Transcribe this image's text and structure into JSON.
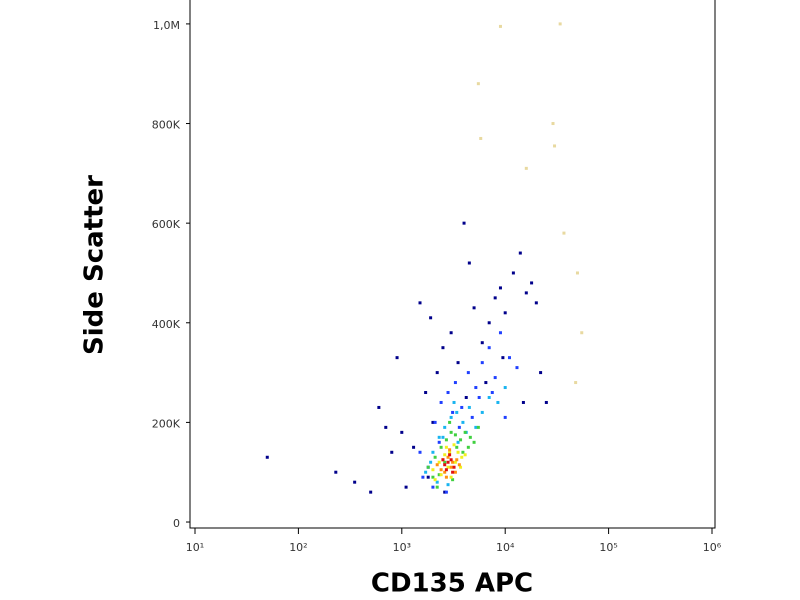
{
  "chart_data": {
    "type": "scatter",
    "x_label": "CD135 APC",
    "y_label": "Side Scatter",
    "x_scale": "log",
    "xlim": [
      10,
      1000000
    ],
    "ylim": [
      -12000,
      1048000
    ],
    "xticks": [
      {
        "value": 10,
        "label": "10¹"
      },
      {
        "value": 100,
        "label": "10²"
      },
      {
        "value": 1000,
        "label": "10³"
      },
      {
        "value": 10000,
        "label": "10⁴"
      },
      {
        "value": 100000,
        "label": "10⁵"
      },
      {
        "value": 1000000,
        "label": "10⁶"
      }
    ],
    "yticks": [
      0,
      {
        "value": 200000,
        "label": "200K"
      },
      {
        "value": 400000,
        "label": "400K"
      },
      {
        "value": 600000,
        "label": "600K"
      },
      {
        "value": 800000,
        "label": "800K"
      },
      {
        "value": 1000000,
        "label": "1,0M"
      }
    ],
    "layers": [
      {
        "color": "#00008b",
        "x": [
          50,
          230,
          350,
          500,
          600,
          700,
          800,
          900,
          1100,
          1300,
          1500,
          1700,
          2000,
          2200,
          2500,
          3000,
          3500,
          4000,
          4500,
          5000,
          6000,
          7000,
          8000,
          9000,
          10000,
          12000,
          14000,
          16000,
          18000,
          20000,
          22000,
          25000,
          1800,
          2600,
          4200,
          6500,
          9500,
          15000,
          1900,
          1000
        ],
        "y": [
          130000,
          100000,
          80000,
          60000,
          230000,
          190000,
          140000,
          330000,
          70000,
          150000,
          440000,
          260000,
          200000,
          300000,
          350000,
          380000,
          320000,
          600000,
          520000,
          430000,
          360000,
          400000,
          450000,
          470000,
          420000,
          500000,
          540000,
          460000,
          480000,
          440000,
          300000,
          240000,
          90000,
          60000,
          250000,
          280000,
          330000,
          240000,
          410000,
          180000
        ]
      },
      {
        "color": "#e8d9a0",
        "x": [
          5500,
          5800,
          9000,
          34000,
          29000,
          30000,
          16000,
          37000,
          50000,
          55000,
          48000
        ],
        "y": [
          880000,
          770000,
          995000,
          1000000,
          800000,
          755000,
          710000,
          580000,
          500000,
          380000,
          280000
        ]
      },
      {
        "color": "#2040ff",
        "x": [
          1500,
          1800,
          2100,
          2400,
          2800,
          3300,
          3800,
          4400,
          5200,
          6000,
          7000,
          8000,
          9000,
          11000,
          13000,
          2000,
          2700,
          3600,
          4800,
          1600,
          2300,
          3100,
          5600,
          7500,
          10000
        ],
        "y": [
          140000,
          110000,
          200000,
          240000,
          260000,
          280000,
          230000,
          300000,
          270000,
          320000,
          350000,
          290000,
          380000,
          330000,
          310000,
          70000,
          60000,
          190000,
          210000,
          90000,
          160000,
          220000,
          250000,
          260000,
          210000
        ]
      },
      {
        "color": "#19b4f0",
        "x": [
          1700,
          2000,
          2300,
          2600,
          3000,
          3400,
          3900,
          4500,
          5200,
          6000,
          2200,
          2800,
          3500,
          4200,
          1900,
          2500,
          3200,
          7000,
          8500,
          10000
        ],
        "y": [
          100000,
          140000,
          170000,
          190000,
          210000,
          220000,
          200000,
          230000,
          190000,
          220000,
          80000,
          75000,
          160000,
          180000,
          120000,
          170000,
          240000,
          250000,
          240000,
          270000
        ]
      },
      {
        "color": "#40d040",
        "x": [
          1800,
          2100,
          2400,
          2700,
          3000,
          3300,
          3700,
          4100,
          4600,
          2000,
          2300,
          2600,
          2900,
          3400,
          3900,
          4400,
          2200,
          3100,
          5000,
          5500
        ],
        "y": [
          110000,
          130000,
          150000,
          165000,
          180000,
          175000,
          165000,
          180000,
          170000,
          90000,
          95000,
          120000,
          200000,
          150000,
          140000,
          150000,
          70000,
          85000,
          160000,
          190000
        ]
      },
      {
        "color": "#f0f020",
        "x": [
          2000,
          2300,
          2600,
          2900,
          3200,
          3500,
          3800,
          2400,
          2800,
          3300,
          3700,
          4100,
          2100,
          2700,
          3000
        ],
        "y": [
          105000,
          120000,
          135000,
          140000,
          155000,
          140000,
          130000,
          95000,
          110000,
          120000,
          110000,
          135000,
          85000,
          150000,
          90000
        ]
      },
      {
        "color": "#ff9010",
        "x": [
          2200,
          2500,
          2800,
          3100,
          3400,
          2600,
          3000,
          3300,
          2400,
          2900,
          3600,
          2700
        ],
        "y": [
          115000,
          125000,
          130000,
          120000,
          125000,
          100000,
          110000,
          100000,
          105000,
          145000,
          115000,
          90000
        ]
      },
      {
        "color": "#e01010",
        "x": [
          2600,
          2800,
          3000,
          3200,
          2700,
          2900,
          3100,
          2500
        ],
        "y": [
          115000,
          120000,
          125000,
          110000,
          105000,
          135000,
          100000,
          125000
        ]
      }
    ]
  }
}
